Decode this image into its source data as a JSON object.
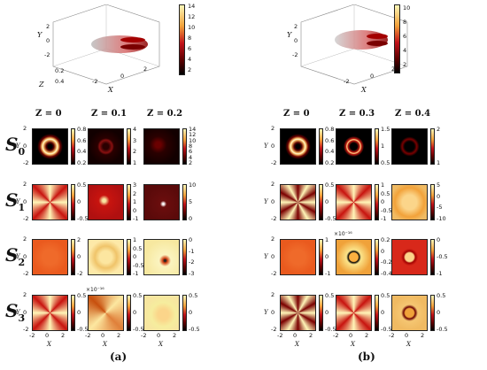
{
  "panels": {
    "a": {
      "label": "(a)",
      "top_colorbar": [
        "14",
        "12",
        "10",
        "8",
        "6",
        "4",
        "2"
      ],
      "top_axes": {
        "x_label": "X",
        "y_label": "Y",
        "z_label": "Z",
        "y_ticks": [
          "2",
          "0",
          "-2"
        ],
        "z_ticks": [
          "0.2",
          "0.4"
        ],
        "x_ticks": [
          "-2",
          "0",
          "2"
        ]
      },
      "columns": [
        "Z = 0",
        "Z = 0.1",
        "Z = 0.2"
      ],
      "rows": [
        {
          "name": "S",
          "sub": "0",
          "cbars": [
            [
              "0.8",
              "0.6",
              "0.4",
              "0.2"
            ],
            [
              "4",
              "3",
              "2",
              "1"
            ],
            [
              "14",
              "12",
              "10",
              "8",
              "6",
              "4",
              "2"
            ]
          ]
        },
        {
          "name": "S",
          "sub": "1",
          "cbars": [
            [
              "0.5",
              "0",
              "-0.5"
            ],
            [
              "3",
              "2",
              "1",
              "0",
              "-1"
            ],
            [
              "10",
              "5",
              "0"
            ]
          ]
        },
        {
          "name": "S",
          "sub": "2",
          "cbars": [
            [
              "2",
              "0",
              "-2"
            ],
            [
              "1",
              "0.5",
              "0",
              "-0.5",
              "-1"
            ],
            [
              "0",
              "-1",
              "-2",
              "-3"
            ]
          ]
        },
        {
          "name": "S",
          "sub": "3",
          "cbars": [
            [
              "0.5",
              "0",
              "-0.5"
            ],
            [
              "0.5",
              "0",
              "-0.5"
            ],
            [
              "0.5",
              "0",
              "-0.5"
            ]
          ],
          "exponent": "×10⁻¹⁶"
        }
      ],
      "y_ticks": [
        "-2",
        "0",
        "2"
      ],
      "x_ticks": [
        "-2",
        "0",
        "2"
      ]
    },
    "b": {
      "label": "(b)",
      "top_colorbar": [
        "10",
        "8",
        "6",
        "4",
        "2"
      ],
      "top_axes": {
        "x_label": "X",
        "y_label": "Y",
        "z_label": "Z",
        "y_ticks": [
          "2",
          "0",
          "-2"
        ],
        "x_ticks": [
          "-2",
          "0",
          "2"
        ]
      },
      "columns": [
        "Z = 0",
        "Z = 0.3",
        "Z = 0.4"
      ],
      "rows": [
        {
          "name": "S",
          "sub": "0",
          "cbars": [
            [
              "0.8",
              "0.6",
              "0.4",
              "0.2"
            ],
            [
              "1.5",
              "1",
              "0.5"
            ],
            [
              "2",
              "1"
            ]
          ]
        },
        {
          "name": "S",
          "sub": "1",
          "cbars": [
            [
              "0.5",
              "0",
              "-0.5"
            ],
            [
              "1",
              "0.5",
              "0",
              "-0.5",
              "-1"
            ],
            [
              "5",
              "0",
              "-5",
              "-10"
            ]
          ]
        },
        {
          "name": "S",
          "sub": "2",
          "cbars": [
            [
              "1",
              "0",
              "-1"
            ],
            [
              "0.2",
              "0",
              "-0.2",
              "-0.4"
            ],
            [
              "0",
              "-0.5",
              "-1"
            ]
          ],
          "exponent": "×10⁻¹⁶"
        },
        {
          "name": "S",
          "sub": "3",
          "cbars": [
            [
              "0.5",
              "0",
              "-0.5"
            ],
            [
              "0.5",
              "0",
              "-0.5"
            ],
            [
              "0.5",
              "0",
              "-0.5"
            ]
          ]
        }
      ],
      "y_ticks": [
        "-2",
        "0",
        "2"
      ],
      "x_ticks": [
        "-2",
        "0",
        "2"
      ]
    }
  },
  "axis_labels": {
    "x": "X",
    "y": "Y"
  }
}
